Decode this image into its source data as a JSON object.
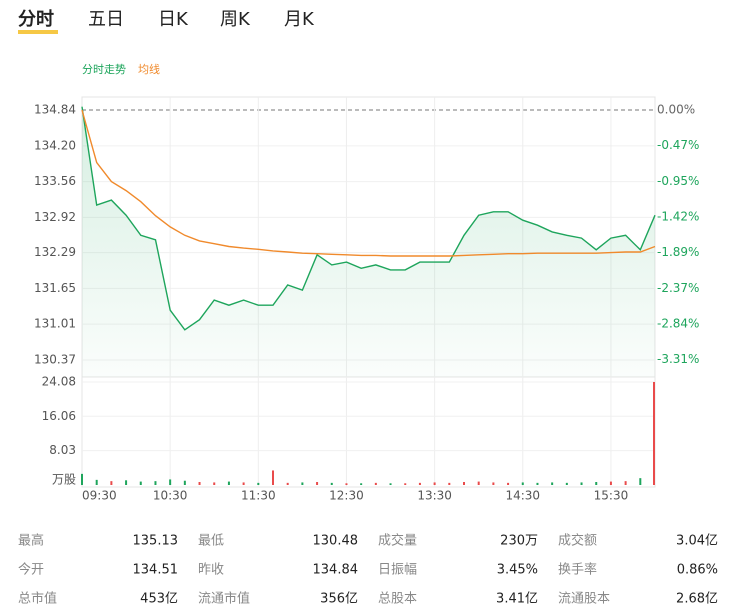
{
  "tabs": [
    "分时",
    "五日",
    "日K",
    "周K",
    "月K"
  ],
  "chart_data": {
    "type": "line",
    "x": [
      0,
      10,
      20,
      30,
      40,
      50,
      60,
      70,
      80,
      90,
      100,
      110,
      120,
      130,
      140,
      150,
      160,
      170,
      180,
      190,
      200,
      210,
      220,
      230,
      240,
      250,
      260,
      270,
      280,
      290,
      300,
      310,
      320,
      330,
      340,
      350,
      360,
      370,
      380,
      390
    ],
    "xlim": [
      0,
      390
    ],
    "xticks": [
      {
        "value": 0,
        "label": "09:30"
      },
      {
        "value": 60,
        "label": "10:30"
      },
      {
        "value": 120,
        "label": "11:30"
      },
      {
        "value": 180,
        "label": "12:30"
      },
      {
        "value": 240,
        "label": "13:30"
      },
      {
        "value": 300,
        "label": "14:30"
      },
      {
        "value": 360,
        "label": "15:30"
      }
    ],
    "series": [
      {
        "name": "分时走势",
        "color": "#1ea55c",
        "values": [
          134.9,
          133.14,
          133.23,
          132.96,
          132.6,
          132.52,
          131.26,
          130.91,
          131.09,
          131.44,
          131.35,
          131.44,
          131.35,
          131.35,
          131.71,
          131.62,
          132.25,
          132.07,
          132.12,
          132.01,
          132.07,
          131.98,
          131.98,
          132.12,
          132.12,
          132.12,
          132.6,
          132.96,
          133.02,
          133.02,
          132.87,
          132.78,
          132.66,
          132.6,
          132.55,
          132.34,
          132.55,
          132.6,
          132.34,
          132.96
        ]
      },
      {
        "name": "均线",
        "color": "#f08a2c",
        "values": [
          134.84,
          133.9,
          133.56,
          133.4,
          133.2,
          132.95,
          132.75,
          132.6,
          132.5,
          132.45,
          132.4,
          132.37,
          132.35,
          132.32,
          132.3,
          132.28,
          132.27,
          132.26,
          132.25,
          132.24,
          132.24,
          132.23,
          132.23,
          132.23,
          132.23,
          132.23,
          132.24,
          132.25,
          132.26,
          132.27,
          132.27,
          132.28,
          132.28,
          132.28,
          132.28,
          132.28,
          132.29,
          132.3,
          132.3,
          132.4
        ]
      }
    ],
    "ylim": [
      130.19,
      135.02
    ],
    "yticks": [
      134.84,
      {
        "value": 134.2,
        "label": "134.20"
      },
      133.56,
      132.92,
      132.29,
      131.65,
      131.01,
      130.37
    ],
    "y2lim": [
      -3.449,
      0.133
    ],
    "y2ticks": [
      {
        "value": 0,
        "label": "0.00%"
      },
      {
        "value": -0.47,
        "label": "-0.47%"
      },
      {
        "value": -0.95,
        "label": "-0.95%"
      },
      {
        "value": -1.42,
        "label": "-1.42%"
      },
      {
        "value": -1.89,
        "label": "-1.89%"
      },
      {
        "value": -2.37,
        "label": "-2.37%"
      },
      {
        "value": -2.84,
        "label": "-2.84%"
      },
      {
        "value": -3.31,
        "label": "-3.31%"
      }
    ],
    "volume": {
      "unit": "万股",
      "ylim": [
        0,
        25.01
      ],
      "yticks": [
        8.03,
        16.06,
        24.08
      ],
      "values": [
        2.6,
        1.2,
        0.9,
        1.1,
        0.8,
        0.9,
        1.3,
        1.0,
        0.7,
        0.6,
        0.8,
        0.6,
        0.5,
        3.4,
        0.5,
        0.6,
        0.7,
        0.5,
        0.4,
        0.4,
        0.5,
        0.4,
        0.4,
        0.5,
        0.6,
        0.5,
        0.7,
        0.8,
        0.6,
        0.5,
        0.6,
        0.5,
        0.6,
        0.5,
        0.6,
        0.7,
        0.8,
        0.9,
        1.6,
        24.08
      ]
    }
  },
  "stats": [
    [
      [
        "最高",
        "135.13"
      ],
      [
        "最低",
        "130.48"
      ],
      [
        "成交量",
        "230万"
      ],
      [
        "成交额",
        "3.04亿"
      ]
    ],
    [
      [
        "今开",
        "134.51"
      ],
      [
        "昨收",
        "134.84"
      ],
      [
        "日振幅",
        "3.45%"
      ],
      [
        "换手率",
        "0.86%"
      ]
    ],
    [
      [
        "总市值",
        "453亿"
      ],
      [
        "流通市值",
        "356亿"
      ],
      [
        "总股本",
        "3.41亿"
      ],
      [
        "流通股本",
        "2.68亿"
      ]
    ]
  ]
}
